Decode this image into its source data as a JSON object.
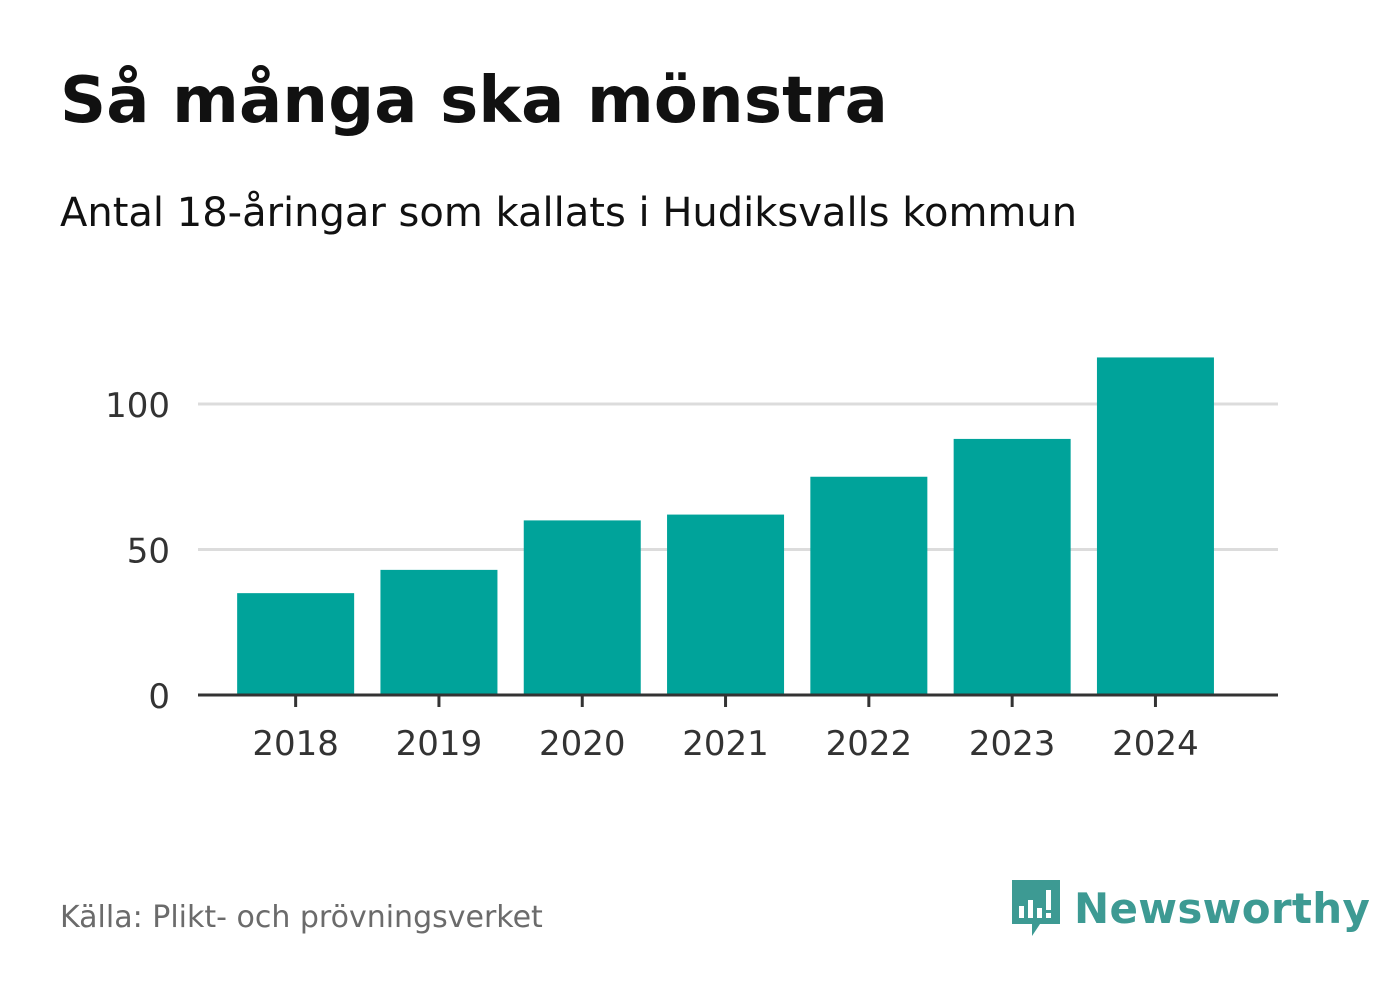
{
  "title": "Så många ska mönstra",
  "subtitle": "Antal 18-åringar som kallats i Hudiksvalls kommun",
  "source": "Källa: Plikt- och prövningsverket",
  "brand": {
    "name": "Newsworthy",
    "logo_icon": "newsworthy-bar-chart-bubble-icon",
    "color": "#3d9a93"
  },
  "colors": {
    "bar": "#00a39a",
    "grid": "#dcdcdc",
    "axis": "#333333",
    "tick_text": "#333333"
  },
  "chart_data": {
    "type": "bar",
    "title": "Så många ska mönstra",
    "subtitle": "Antal 18-åringar som kallats i Hudiksvalls kommun",
    "categories": [
      "2018",
      "2019",
      "2020",
      "2021",
      "2022",
      "2023",
      "2024"
    ],
    "values": [
      35,
      43,
      60,
      62,
      75,
      88,
      116
    ],
    "xlabel": "",
    "ylabel": "",
    "ylim": [
      0,
      120
    ],
    "yticks": [
      0,
      50,
      100
    ],
    "ytick_labels": [
      "0",
      "50",
      "100"
    ],
    "grid": true
  }
}
